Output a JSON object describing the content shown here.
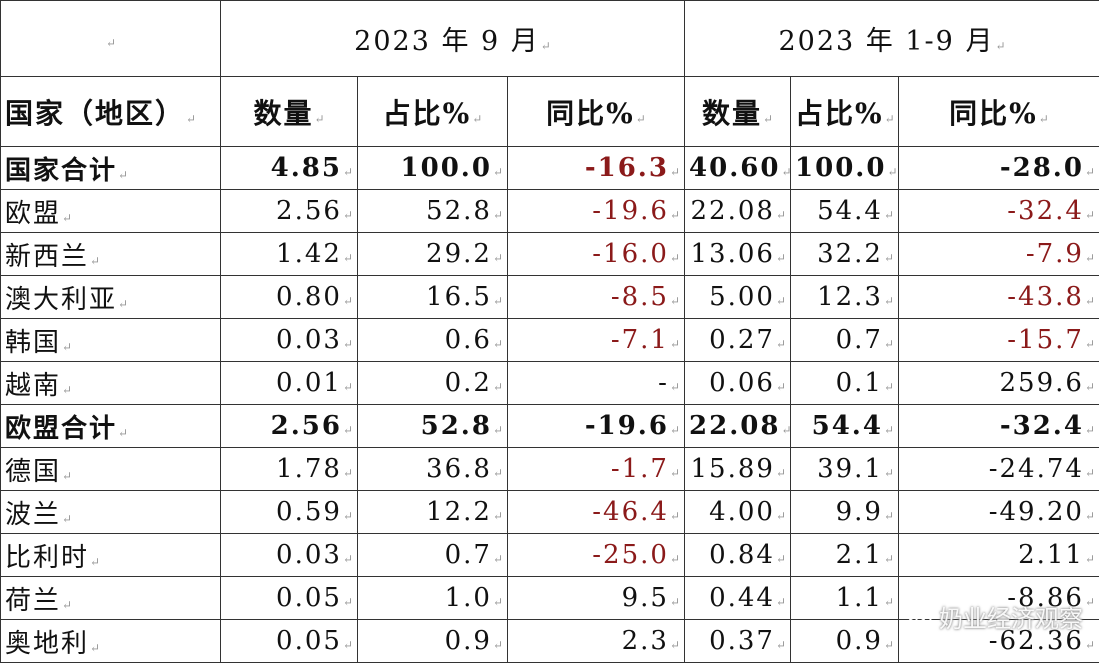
{
  "header": {
    "blank": "",
    "period1": "2023 年 9 月",
    "period2": "2023 年 1-9 月",
    "col_country": "国家（地区）",
    "col_qty": "数量",
    "col_share": "占比%",
    "col_yoy": "同比%"
  },
  "rows": [
    {
      "name": "国家合计",
      "bold": true,
      "q1": "4.85",
      "s1": "100.0",
      "y1": "-16.3",
      "y1_neg": true,
      "q2": "40.60",
      "s2": "100.0",
      "y2": "-28.0",
      "y2_neg": false
    },
    {
      "name": "欧盟",
      "bold": false,
      "q1": "2.56",
      "s1": "52.8",
      "y1": "-19.6",
      "y1_neg": true,
      "q2": "22.08",
      "s2": "54.4",
      "y2": "-32.4",
      "y2_neg": true
    },
    {
      "name": "新西兰",
      "bold": false,
      "q1": "1.42",
      "s1": "29.2",
      "y1": "-16.0",
      "y1_neg": true,
      "q2": "13.06",
      "s2": "32.2",
      "y2": "-7.9",
      "y2_neg": true
    },
    {
      "name": "澳大利亚",
      "bold": false,
      "q1": "0.80",
      "s1": "16.5",
      "y1": "-8.5",
      "y1_neg": true,
      "q2": "5.00",
      "s2": "12.3",
      "y2": "-43.8",
      "y2_neg": true
    },
    {
      "name": "韩国",
      "bold": false,
      "q1": "0.03",
      "s1": "0.6",
      "y1": "-7.1",
      "y1_neg": true,
      "q2": "0.27",
      "s2": "0.7",
      "y2": "-15.7",
      "y2_neg": true
    },
    {
      "name": "越南",
      "bold": false,
      "q1": "0.01",
      "s1": "0.2",
      "y1": "-",
      "y1_neg": false,
      "q2": "0.06",
      "s2": "0.1",
      "y2": "259.6",
      "y2_neg": false
    },
    {
      "name": "欧盟合计",
      "bold": true,
      "q1": "2.56",
      "s1": "52.8",
      "y1": "-19.6",
      "y1_neg": false,
      "q2": "22.08",
      "s2": "54.4",
      "y2": "-32.4",
      "y2_neg": false
    },
    {
      "name": "德国",
      "bold": false,
      "q1": "1.78",
      "s1": "36.8",
      "y1": "-1.7",
      "y1_neg": true,
      "q2": "15.89",
      "s2": "39.1",
      "y2": "-24.74",
      "y2_neg": false
    },
    {
      "name": "波兰",
      "bold": false,
      "q1": "0.59",
      "s1": "12.2",
      "y1": "-46.4",
      "y1_neg": true,
      "q2": "4.00",
      "s2": "9.9",
      "y2": "-49.20",
      "y2_neg": false
    },
    {
      "name": "比利时",
      "bold": false,
      "q1": "0.03",
      "s1": "0.7",
      "y1": "-25.0",
      "y1_neg": true,
      "q2": "0.84",
      "s2": "2.1",
      "y2": "2.11",
      "y2_neg": false
    },
    {
      "name": "荷兰",
      "bold": false,
      "q1": "0.05",
      "s1": "1.0",
      "y1": "9.5",
      "y1_neg": false,
      "q2": "0.44",
      "s2": "1.1",
      "y2": "-8.86",
      "y2_neg": false
    },
    {
      "name": "奥地利",
      "bold": false,
      "q1": "0.05",
      "s1": "0.9",
      "y1": "2.3",
      "y1_neg": false,
      "q2": "0.37",
      "s2": "0.9",
      "y2": "-62.36",
      "y2_neg": false
    }
  ],
  "watermark": {
    "text": "奶业经济观察",
    "icon": "wechat-icon"
  },
  "colors": {
    "negative_value": "#8b1a1a",
    "text": "#111111",
    "border": "#333333"
  }
}
